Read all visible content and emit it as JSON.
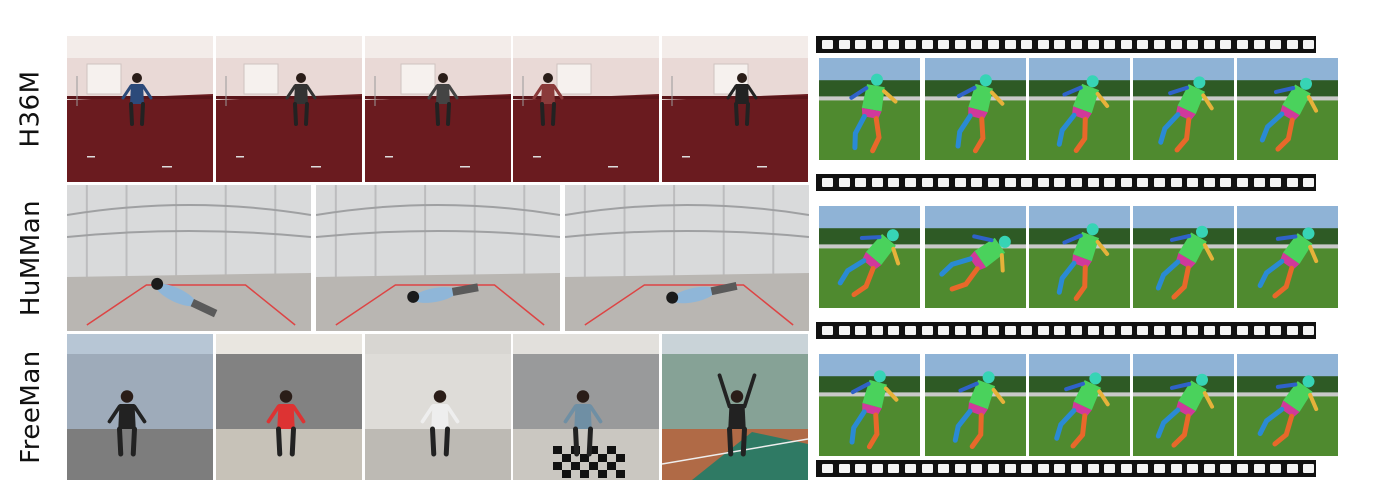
{
  "rows": [
    {
      "label": "H36M",
      "scene": "indoor-studio-photos"
    },
    {
      "label": "HuMMan",
      "scene": "multi-camera-dome-photos"
    },
    {
      "label": "FreeMan",
      "scene": "outdoor-and-indoor-free-photos"
    }
  ],
  "colors": {
    "h36m_floor": "#6a1b1f",
    "h36m_wall": "#e9d9d6",
    "humman_curtain": "#d9dadb",
    "humman_floor": "#b9b6b2",
    "grass": "#4f8a2f",
    "film": "#111111"
  },
  "icons": [
    "human-figure-icon",
    "mesh-body-icon"
  ]
}
